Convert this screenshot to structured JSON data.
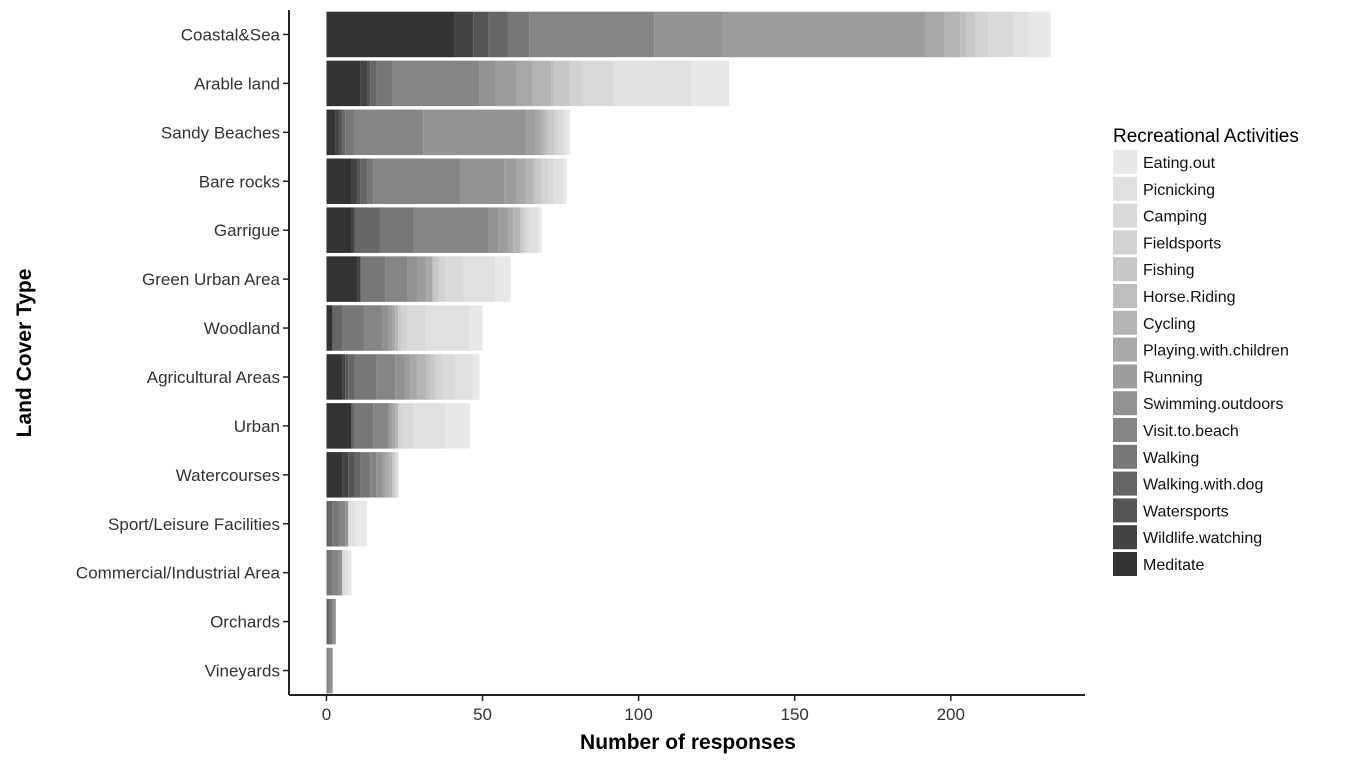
{
  "chart_data": {
    "type": "bar",
    "orientation": "horizontal",
    "stacked": true,
    "title": "",
    "xlabel": "Number of responses",
    "ylabel": "Land Cover Type",
    "xlim": [
      -12,
      243
    ],
    "xticks": [
      0,
      50,
      100,
      150,
      200
    ],
    "grid": false,
    "legend_position": "right",
    "legend_title": "Recreational Activities",
    "categories": [
      "Coastal&Sea",
      "Arable land",
      "Sandy Beaches",
      "Bare rocks",
      "Garrigue",
      "Green Urban Area",
      "Woodland",
      "Agricultural Areas",
      "Urban",
      "Watercourses",
      "Sport/Leisure Facilities",
      "Commercial/Industrial Area",
      "Orchards",
      "Vineyards"
    ],
    "series": [
      {
        "name": "Meditate",
        "color": "#333333",
        "values": [
          41,
          11,
          3,
          8,
          8,
          10,
          2,
          5,
          8,
          5,
          0,
          0,
          0,
          0
        ]
      },
      {
        "name": "Wildlife.watching",
        "color": "#434343",
        "values": [
          6,
          2,
          1,
          2,
          1,
          1,
          0,
          1,
          0,
          2,
          0,
          0,
          0,
          0
        ]
      },
      {
        "name": "Watersports",
        "color": "#555555",
        "values": [
          5,
          1,
          1,
          1,
          0,
          0,
          0,
          1,
          0,
          2,
          0,
          0,
          0,
          0
        ]
      },
      {
        "name": "Walking.with.dog",
        "color": "#666666",
        "values": [
          6,
          2,
          1,
          2,
          8,
          0,
          3,
          2,
          1,
          2,
          2,
          0,
          1,
          0
        ]
      },
      {
        "name": "Walking",
        "color": "#777777",
        "values": [
          7,
          5,
          3,
          2,
          11,
          8,
          7,
          7,
          6,
          3,
          2,
          2,
          1,
          0
        ]
      },
      {
        "name": "Visit.to.beach",
        "color": "#858585",
        "values": [
          40,
          28,
          22,
          28,
          24,
          7,
          6,
          6,
          5,
          2,
          2,
          2,
          0,
          1
        ]
      },
      {
        "name": "Swimming.outdoors",
        "color": "#929292",
        "values": [
          22,
          5,
          33,
          14,
          3,
          3,
          2,
          3,
          0,
          2,
          1,
          1,
          1,
          1
        ]
      },
      {
        "name": "Running",
        "color": "#9d9d9d",
        "values": [
          65,
          7,
          3,
          4,
          3,
          3,
          1,
          2,
          1,
          1,
          0,
          0,
          0,
          0
        ]
      },
      {
        "name": "Playing.with.children",
        "color": "#a8a8a8",
        "values": [
          6,
          5,
          2,
          3,
          2,
          2,
          1,
          2,
          1,
          1,
          0,
          0,
          0,
          0
        ]
      },
      {
        "name": "Cycling",
        "color": "#b4b4b4",
        "values": [
          5,
          6,
          1,
          2,
          2,
          0,
          1,
          3,
          1,
          1,
          0,
          0,
          0,
          0
        ]
      },
      {
        "name": "Horse.Riding",
        "color": "#bebebe",
        "values": [
          2,
          1,
          1,
          1,
          0,
          0,
          0,
          1,
          0,
          0,
          0,
          0,
          0,
          0
        ]
      },
      {
        "name": "Fishing",
        "color": "#c8c8c8",
        "values": [
          3,
          5,
          2,
          2,
          1,
          2,
          1,
          2,
          0,
          1,
          0,
          0,
          0,
          0
        ]
      },
      {
        "name": "Fieldsports",
        "color": "#d2d2d2",
        "values": [
          4,
          4,
          1,
          2,
          1,
          2,
          2,
          2,
          1,
          0,
          0,
          0,
          0,
          0
        ]
      },
      {
        "name": "Camping",
        "color": "#d9d9d9",
        "values": [
          8,
          10,
          2,
          2,
          1,
          6,
          6,
          4,
          4,
          1,
          0,
          1,
          0,
          0
        ]
      },
      {
        "name": "Picnicking",
        "color": "#e0e0e0",
        "values": [
          5,
          25,
          1,
          3,
          3,
          10,
          14,
          6,
          10,
          0,
          2,
          1,
          0,
          0
        ]
      },
      {
        "name": "Eating.out",
        "color": "#e8e8e8",
        "values": [
          7,
          12,
          1,
          1,
          1,
          5,
          4,
          2,
          8,
          0,
          4,
          1,
          0,
          0
        ]
      }
    ]
  }
}
